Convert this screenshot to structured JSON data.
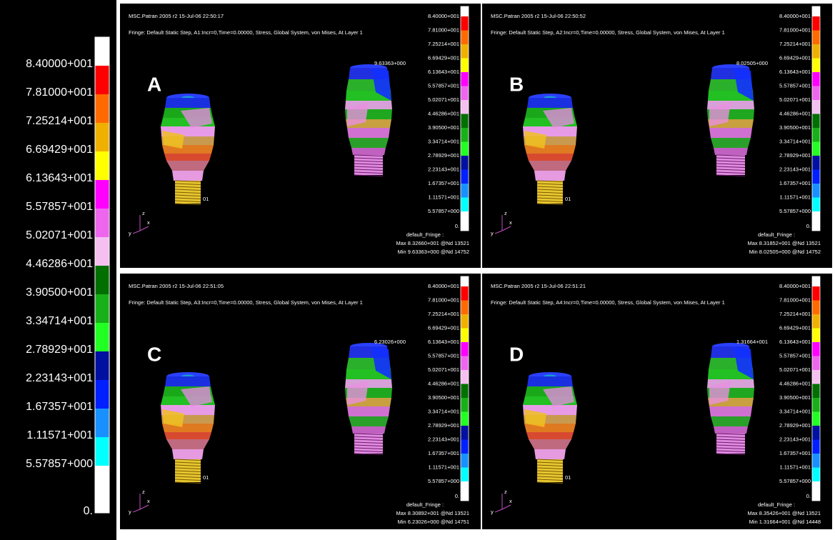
{
  "legend": {
    "labels": [
      "8.40000+001",
      "7.81000+001",
      "7.25214+001",
      "6.69429+001",
      "6.13643+001",
      "5.57857+001",
      "5.02071+001",
      "4.46286+001",
      "3.90500+001",
      "3.34714+001",
      "2.78929+001",
      "2.23143+001",
      "1.67357+001",
      "1.11571+001",
      "5.57857+000",
      "0."
    ],
    "colors": [
      "#ff0000",
      "#ff6a00",
      "#f0b000",
      "#ffff00",
      "#ff00ff",
      "#ee66ee",
      "#f5c0f0",
      "#007000",
      "#18b018",
      "#22ff22",
      "#0010a0",
      "#0020ff",
      "#1890ff",
      "#00ffff",
      "#ffffff"
    ]
  },
  "panels": [
    {
      "letter": "A",
      "header": "MSC.Patran 2005 r2 15-Jul-06 22:50:17",
      "fringe": "Fringe: Default Static Step, A1:Incr=0,Time=0.00000, Stress, Global System, von Mises, At Layer 1",
      "min_marker": "9.63363+000",
      "node_marker": "01",
      "triad": [
        "z",
        "x",
        "y"
      ],
      "fringe_title": "default_Fringe :",
      "max": "Max 8.32660+001 @Nd 13521",
      "min": "Min 9.63363+000 @Nd 14752"
    },
    {
      "letter": "B",
      "header": "MSC.Patran 2005 r2 15-Jul-06 22:50:52",
      "fringe": "Fringe: Default Static Step, A2:Incr=0,Time=0.00000, Stress, Global System, von Mises, At Layer 1",
      "min_marker": "8.02505+000",
      "node_marker": "01",
      "triad": [
        "z",
        "x",
        "y"
      ],
      "fringe_title": "default_Fringe :",
      "max": "Max 8.31852+001 @Nd 13521",
      "min": "Min 8.02505+000 @Nd 14752"
    },
    {
      "letter": "C",
      "header": "MSC.Patran 2005 r2 15-Jul-06 22:51:05",
      "fringe": "Fringe: Default Static Step, A3:Incr=0,Time=0.00000, Stress, Global System, von Mises, At Layer 1",
      "min_marker": "6.23026+000",
      "node_marker": "01",
      "triad": [
        "z",
        "x",
        "y"
      ],
      "fringe_title": "default_Fringe :",
      "max": "Max 8.30892+001 @Nd 13521",
      "min": "Min 6.23026+000 @Nd 14751"
    },
    {
      "letter": "D",
      "header": "MSC.Patran 2005 r2 15-Jul-06 22:51:21",
      "fringe": "Fringe: Default Static Step, A4:Incr=0,Time=0.00000, Stress, Global System, von Mises, At Layer 1",
      "min_marker": "1.31664+001",
      "node_marker": "01",
      "triad": [
        "z",
        "x",
        "y"
      ],
      "fringe_title": "default_Fringe :",
      "max": "Max 8.35426+001 @Nd 13521",
      "min": "Min 1.31664+001 @Nd 14448"
    }
  ]
}
